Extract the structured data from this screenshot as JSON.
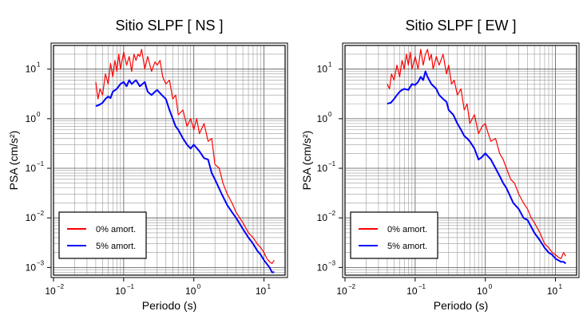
{
  "chart_data": [
    {
      "type": "line",
      "title": "Sitio SLPF [ NS ]",
      "xlabel": "Periodo (s)",
      "ylabel": "PSA (cm/s²)",
      "xscale": "log",
      "yscale": "log",
      "xlim": [
        0.01,
        20
      ],
      "ylim": [
        0.0007,
        30
      ],
      "grid": true,
      "legend_position": "bottom-left",
      "x_ticks": [
        {
          "value": 0.01,
          "mantissa": "10",
          "exp": "−2"
        },
        {
          "value": 0.1,
          "mantissa": "10",
          "exp": "−1"
        },
        {
          "value": 1,
          "mantissa": "10",
          "exp": "0"
        },
        {
          "value": 10,
          "mantissa": "10",
          "exp": "1"
        }
      ],
      "y_ticks": [
        {
          "value": 0.001,
          "mantissa": "10",
          "exp": "−3"
        },
        {
          "value": 0.01,
          "mantissa": "10",
          "exp": "−2"
        },
        {
          "value": 0.1,
          "mantissa": "10",
          "exp": "−1"
        },
        {
          "value": 1,
          "mantissa": "10",
          "exp": "0"
        },
        {
          "value": 10,
          "mantissa": "10",
          "exp": "1"
        }
      ],
      "series": [
        {
          "name": "0% amort.",
          "color": "#ff0000",
          "x": [
            0.04,
            0.043,
            0.046,
            0.05,
            0.055,
            0.06,
            0.065,
            0.07,
            0.075,
            0.08,
            0.085,
            0.09,
            0.1,
            0.11,
            0.12,
            0.13,
            0.14,
            0.15,
            0.16,
            0.17,
            0.18,
            0.2,
            0.22,
            0.25,
            0.28,
            0.3,
            0.33,
            0.36,
            0.4,
            0.45,
            0.5,
            0.55,
            0.6,
            0.7,
            0.8,
            0.9,
            1.0,
            1.1,
            1.2,
            1.4,
            1.6,
            1.8,
            2.0,
            2.3,
            2.6,
            3.0,
            3.5,
            4.0,
            4.5,
            5.0,
            6.0,
            7.0,
            8.0,
            9.0,
            10.0,
            11.0,
            12.0,
            13.0,
            14.0
          ],
          "y": [
            5.5,
            2.5,
            4.0,
            3.0,
            8.0,
            5.0,
            13.0,
            7.0,
            15.0,
            9.0,
            20.0,
            10.0,
            22.0,
            12.0,
            18.0,
            9.0,
            20.0,
            15.0,
            20.0,
            18.0,
            25.0,
            10.0,
            18.0,
            9.0,
            14.0,
            12.0,
            15.0,
            7.0,
            5.0,
            6.0,
            2.5,
            3.0,
            1.2,
            1.5,
            0.7,
            1.0,
            0.6,
            1.0,
            0.5,
            0.8,
            0.35,
            0.4,
            0.12,
            0.1,
            0.05,
            0.03,
            0.02,
            0.013,
            0.01,
            0.008,
            0.005,
            0.004,
            0.003,
            0.0025,
            0.002,
            0.0015,
            0.0013,
            0.0012,
            0.0014
          ]
        },
        {
          "name": "5% amort.",
          "color": "#0000ff",
          "x": [
            0.04,
            0.045,
            0.05,
            0.055,
            0.06,
            0.065,
            0.07,
            0.08,
            0.09,
            0.1,
            0.11,
            0.12,
            0.13,
            0.14,
            0.15,
            0.17,
            0.2,
            0.22,
            0.25,
            0.28,
            0.3,
            0.35,
            0.4,
            0.45,
            0.5,
            0.55,
            0.6,
            0.7,
            0.8,
            0.9,
            1.0,
            1.2,
            1.4,
            1.6,
            1.8,
            2.0,
            2.5,
            3.0,
            3.5,
            4.0,
            5.0,
            6.0,
            7.0,
            8.0,
            9.0,
            10.0,
            12.0,
            13.0,
            14.0
          ],
          "y": [
            1.8,
            1.9,
            2.1,
            2.5,
            2.8,
            2.6,
            3.5,
            4.0,
            5.0,
            5.5,
            4.5,
            6.0,
            5.0,
            5.5,
            6.0,
            4.5,
            5.5,
            3.5,
            3.0,
            3.5,
            3.8,
            3.0,
            2.5,
            1.5,
            1.0,
            0.7,
            0.6,
            0.4,
            0.3,
            0.25,
            0.3,
            0.22,
            0.16,
            0.15,
            0.08,
            0.06,
            0.03,
            0.018,
            0.013,
            0.01,
            0.006,
            0.004,
            0.003,
            0.0022,
            0.0018,
            0.0014,
            0.001,
            0.0008,
            0.0008
          ]
        }
      ]
    },
    {
      "type": "line",
      "title": "Sitio SLPF [ EW ]",
      "xlabel": "Periodo (s)",
      "ylabel": "PSA (cm/s²)",
      "xscale": "log",
      "yscale": "log",
      "xlim": [
        0.01,
        20
      ],
      "ylim": [
        0.0007,
        30
      ],
      "grid": true,
      "legend_position": "bottom-left",
      "x_ticks": [
        {
          "value": 0.01,
          "mantissa": "10",
          "exp": "−2"
        },
        {
          "value": 0.1,
          "mantissa": "10",
          "exp": "−1"
        },
        {
          "value": 1,
          "mantissa": "10",
          "exp": "0"
        },
        {
          "value": 10,
          "mantissa": "10",
          "exp": "1"
        }
      ],
      "y_ticks": [
        {
          "value": 0.001,
          "mantissa": "10",
          "exp": "−3"
        },
        {
          "value": 0.01,
          "mantissa": "10",
          "exp": "−2"
        },
        {
          "value": 0.1,
          "mantissa": "10",
          "exp": "−1"
        },
        {
          "value": 1,
          "mantissa": "10",
          "exp": "0"
        },
        {
          "value": 10,
          "mantissa": "10",
          "exp": "1"
        }
      ],
      "series": [
        {
          "name": "0% amort.",
          "color": "#ff0000",
          "x": [
            0.04,
            0.043,
            0.046,
            0.05,
            0.055,
            0.06,
            0.065,
            0.07,
            0.075,
            0.08,
            0.085,
            0.09,
            0.1,
            0.11,
            0.12,
            0.13,
            0.14,
            0.15,
            0.16,
            0.17,
            0.18,
            0.2,
            0.22,
            0.25,
            0.28,
            0.3,
            0.33,
            0.36,
            0.4,
            0.45,
            0.5,
            0.55,
            0.6,
            0.7,
            0.8,
            0.9,
            1.0,
            1.1,
            1.2,
            1.4,
            1.6,
            1.8,
            2.0,
            2.3,
            2.6,
            3.0,
            3.5,
            4.0,
            4.5,
            5.0,
            6.0,
            7.0,
            8.0,
            9.0,
            10.0,
            11.0,
            12.0,
            13.0,
            14.0
          ],
          "y": [
            5.0,
            4.0,
            8.0,
            6.0,
            12.0,
            7.0,
            15.0,
            10.0,
            20.0,
            12.0,
            22.0,
            10.0,
            18.0,
            10.0,
            25.0,
            12.0,
            20.0,
            25.0,
            15.0,
            20.0,
            10.0,
            18.0,
            12.0,
            20.0,
            8.0,
            12.0,
            5.0,
            6.0,
            3.0,
            4.0,
            1.5,
            2.0,
            0.8,
            1.2,
            0.5,
            0.7,
            0.8,
            0.5,
            0.35,
            0.4,
            0.2,
            0.15,
            0.1,
            0.06,
            0.05,
            0.03,
            0.02,
            0.015,
            0.01,
            0.008,
            0.005,
            0.003,
            0.0025,
            0.002,
            0.0018,
            0.0016,
            0.0015,
            0.002,
            0.0017
          ]
        },
        {
          "name": "5% amort.",
          "color": "#0000ff",
          "x": [
            0.04,
            0.045,
            0.05,
            0.055,
            0.06,
            0.065,
            0.07,
            0.08,
            0.09,
            0.1,
            0.11,
            0.12,
            0.13,
            0.14,
            0.15,
            0.17,
            0.2,
            0.22,
            0.25,
            0.28,
            0.3,
            0.35,
            0.4,
            0.45,
            0.5,
            0.55,
            0.6,
            0.7,
            0.8,
            0.9,
            1.0,
            1.2,
            1.4,
            1.6,
            1.8,
            2.0,
            2.5,
            3.0,
            3.5,
            4.0,
            5.0,
            6.0,
            7.0,
            8.0,
            9.0,
            10.0,
            12.0,
            13.0,
            14.0
          ],
          "y": [
            2.0,
            2.1,
            2.5,
            3.0,
            3.5,
            3.8,
            4.0,
            3.8,
            5.0,
            4.8,
            5.5,
            7.0,
            6.0,
            9.0,
            7.0,
            5.0,
            4.0,
            3.0,
            2.5,
            2.2,
            1.5,
            1.2,
            0.8,
            0.6,
            0.45,
            0.4,
            0.35,
            0.25,
            0.15,
            0.17,
            0.2,
            0.15,
            0.1,
            0.07,
            0.05,
            0.04,
            0.02,
            0.015,
            0.01,
            0.009,
            0.005,
            0.0035,
            0.0025,
            0.002,
            0.0018,
            0.0015,
            0.0013,
            0.0013,
            0.0012
          ]
        }
      ]
    }
  ]
}
